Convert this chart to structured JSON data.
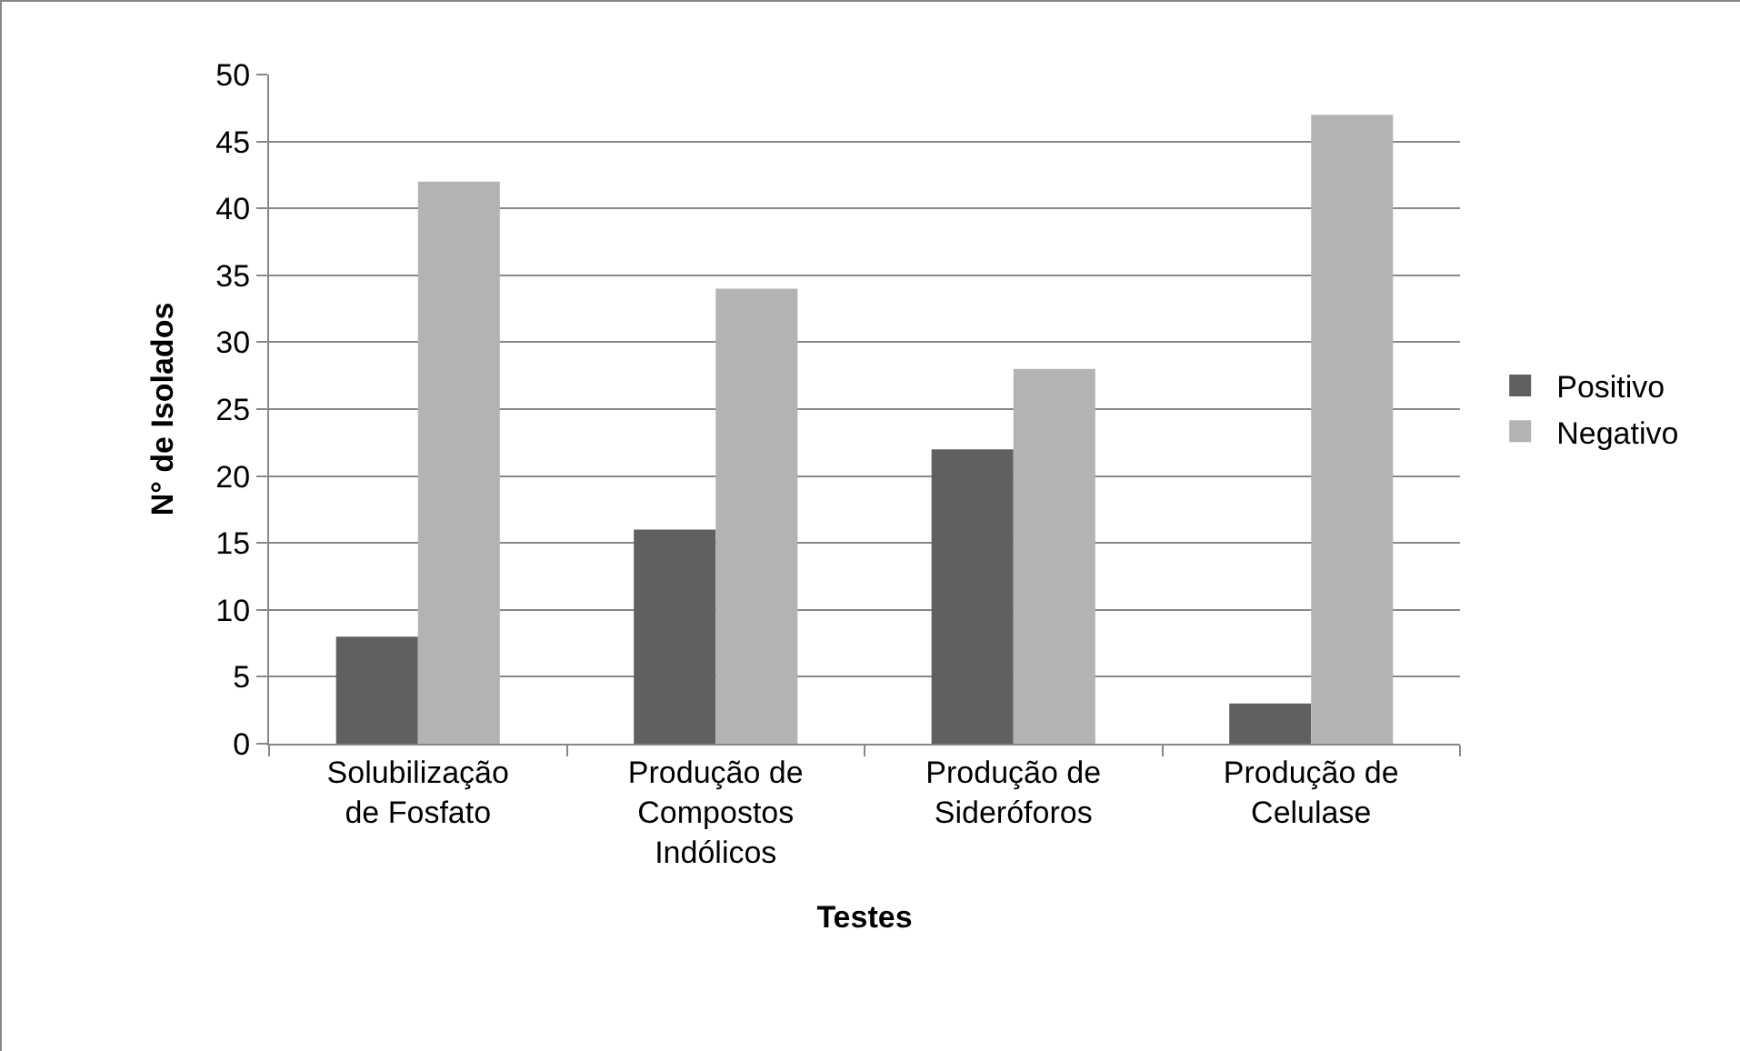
{
  "chart_data": {
    "type": "bar",
    "xlabel": "Testes",
    "ylabel": "N° de Isolados",
    "categories": [
      "Solubilização de Fosfato",
      "Produção de Compostos Indólicos",
      "Produção de Sideróforos",
      "Produção de Celulase"
    ],
    "series": [
      {
        "name": "Positivo",
        "color": "#606060",
        "values": [
          8,
          16,
          22,
          3
        ]
      },
      {
        "name": "Negativo",
        "color": "#b3b3b3",
        "values": [
          42,
          34,
          28,
          47
        ]
      }
    ],
    "ylim": [
      0,
      50
    ],
    "yticks": [
      0,
      5,
      10,
      15,
      20,
      25,
      30,
      35,
      40,
      45,
      50
    ],
    "grid": "y",
    "legend": "right"
  }
}
